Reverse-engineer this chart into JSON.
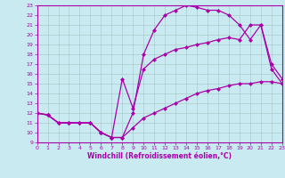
{
  "title": "",
  "xlabel": "Windchill (Refroidissement éolien,°C)",
  "ylabel": "",
  "bg_color": "#c8eaf0",
  "line_color": "#aa00aa",
  "grid_color": "#aacccc",
  "xlim": [
    0,
    23
  ],
  "ylim": [
    9,
    23
  ],
  "xticks": [
    0,
    1,
    2,
    3,
    4,
    5,
    6,
    7,
    8,
    9,
    10,
    11,
    12,
    13,
    14,
    15,
    16,
    17,
    18,
    19,
    20,
    21,
    22,
    23
  ],
  "yticks": [
    9,
    10,
    11,
    12,
    13,
    14,
    15,
    16,
    17,
    18,
    19,
    20,
    21,
    22,
    23
  ],
  "line1_x": [
    0,
    1,
    2,
    3,
    4,
    5,
    6,
    7,
    8,
    9,
    10,
    11,
    12,
    13,
    14,
    15,
    16,
    17,
    18,
    19,
    20,
    21,
    22,
    23
  ],
  "line1_y": [
    12.0,
    11.8,
    11.0,
    11.0,
    11.0,
    11.0,
    10.0,
    9.5,
    9.5,
    10.5,
    11.5,
    12.0,
    12.5,
    13.0,
    13.5,
    14.0,
    14.3,
    14.5,
    14.8,
    15.0,
    15.0,
    15.2,
    15.2,
    15.0
  ],
  "line2_x": [
    0,
    1,
    2,
    3,
    4,
    5,
    6,
    7,
    8,
    9,
    10,
    11,
    12,
    13,
    14,
    15,
    16,
    17,
    18,
    19,
    20,
    21,
    22,
    23
  ],
  "line2_y": [
    12.0,
    11.8,
    11.0,
    11.0,
    11.0,
    11.0,
    10.0,
    9.5,
    9.5,
    12.0,
    18.0,
    20.5,
    22.0,
    22.5,
    23.0,
    22.8,
    22.5,
    22.5,
    22.0,
    21.0,
    19.5,
    21.0,
    16.5,
    15.0
  ],
  "line3_x": [
    0,
    1,
    2,
    3,
    4,
    5,
    6,
    7,
    8,
    9,
    10,
    11,
    12,
    13,
    14,
    15,
    16,
    17,
    18,
    19,
    20,
    21,
    22,
    23
  ],
  "line3_y": [
    12.0,
    11.8,
    11.0,
    11.0,
    11.0,
    11.0,
    10.0,
    9.5,
    15.5,
    12.5,
    16.5,
    17.5,
    18.0,
    18.5,
    18.7,
    19.0,
    19.2,
    19.5,
    19.7,
    19.5,
    21.0,
    21.0,
    17.0,
    15.5
  ]
}
